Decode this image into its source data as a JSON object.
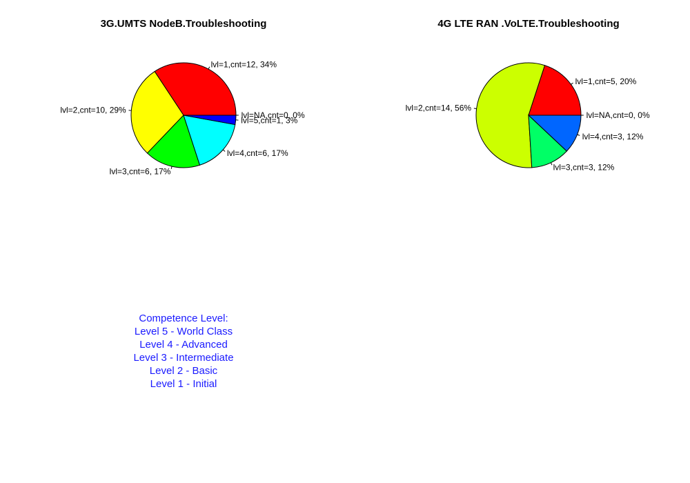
{
  "chart_data": [
    {
      "type": "pie",
      "title": "3G.UMTS NodeB.Troubleshooting",
      "slices": [
        {
          "label": "lvl=1,cnt=12, 34%",
          "value": 12,
          "color": "#ff0000"
        },
        {
          "label": "lvl=2,cnt=10, 29%",
          "value": 10,
          "color": "#ffff00"
        },
        {
          "label": "lvl=3,cnt=6, 17%",
          "value": 6,
          "color": "#00ff00"
        },
        {
          "label": "lvl=4,cnt=6, 17%",
          "value": 6,
          "color": "#00ffff"
        },
        {
          "label": "lvl=5,cnt=1, 3%",
          "value": 1,
          "color": "#0000ff"
        },
        {
          "label": "lvl=NA,cnt=0, 0%",
          "value": 0,
          "color": "#ff00ff"
        }
      ]
    },
    {
      "type": "pie",
      "title": "4G LTE RAN .VoLTE.Troubleshooting",
      "slices": [
        {
          "label": "lvl=1,cnt=5, 20%",
          "value": 5,
          "color": "#ff0000"
        },
        {
          "label": "lvl=2,cnt=14, 56%",
          "value": 14,
          "color": "#ccff00"
        },
        {
          "label": "lvl=3,cnt=3, 12%",
          "value": 3,
          "color": "#00ff66"
        },
        {
          "label": "lvl=4,cnt=3, 12%",
          "value": 3,
          "color": "#0066ff"
        },
        {
          "label": "lvl=NA,cnt=0, 0%",
          "value": 0,
          "color": "#cc00ff"
        }
      ]
    }
  ],
  "legend": {
    "lines": [
      "Competence Level:",
      "Level 5 - World Class",
      "Level 4 - Advanced",
      "Level 3 - Intermediate",
      "Level 2 - Basic",
      "Level 1 - Initial"
    ],
    "color": "#1a1aff"
  }
}
